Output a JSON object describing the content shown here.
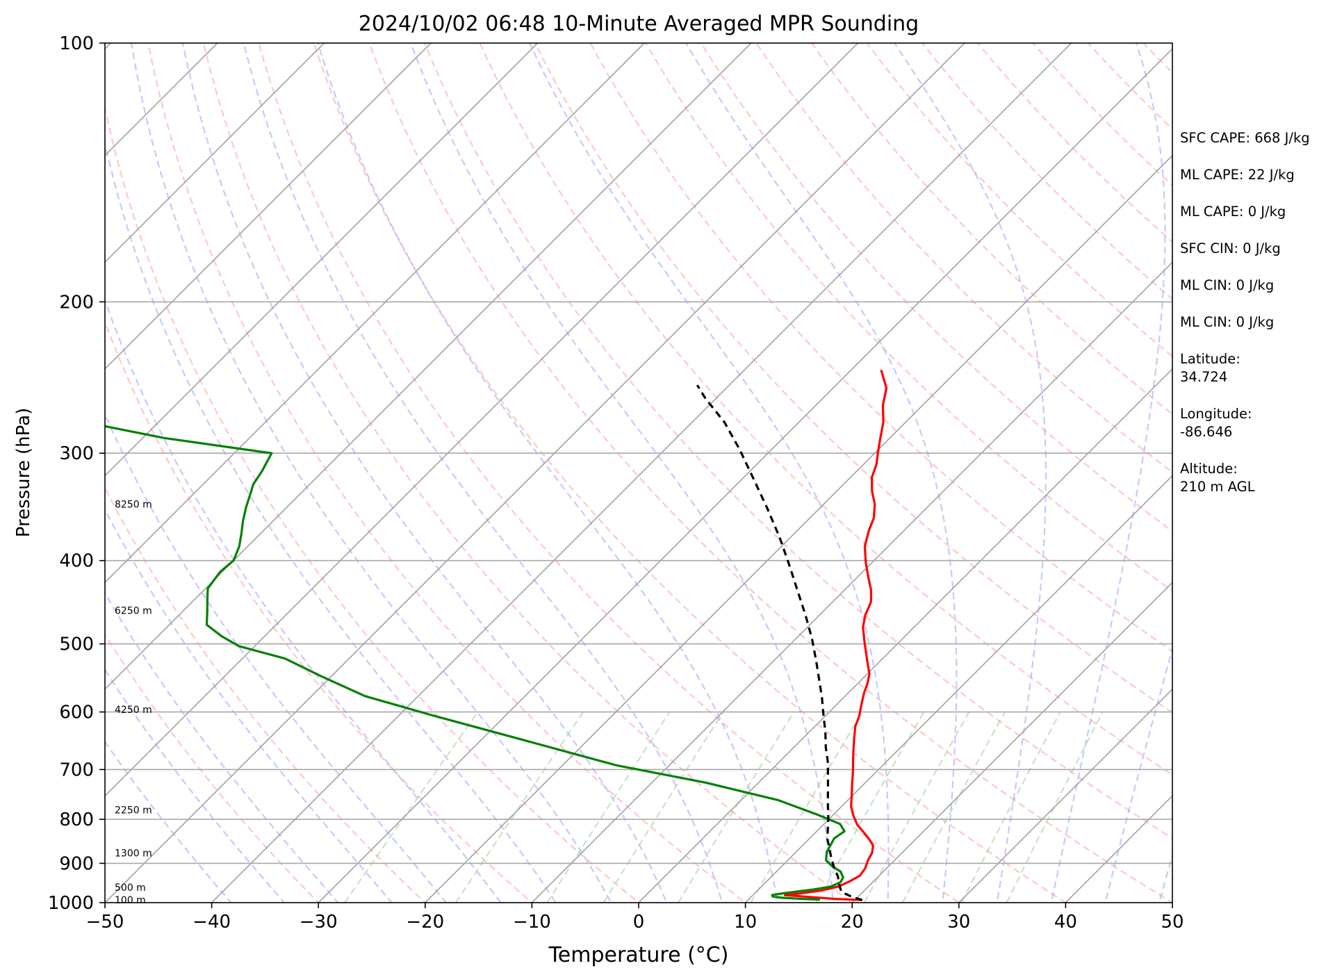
{
  "chart_data": {
    "type": "line",
    "title": "2024/10/02 06:48 10-Minute Averaged MPR Sounding",
    "xlabel": "Temperature (°C)",
    "ylabel": "Pressure (hPa)",
    "xlim": [
      -50,
      50
    ],
    "ylim": [
      1000,
      100
    ],
    "y_scale": "log",
    "skew": "skew-T log-p",
    "x_ticks": [
      "−50",
      "−40",
      "−30",
      "−20",
      "−10",
      "0",
      "10",
      "20",
      "30",
      "40",
      "50"
    ],
    "y_ticks": [
      "100",
      "200",
      "300",
      "400",
      "500",
      "600",
      "700",
      "800",
      "900",
      "1000"
    ],
    "height_labels": [
      {
        "text": "100 m",
        "p": 993
      },
      {
        "text": "500 m",
        "p": 960
      },
      {
        "text": "1300 m",
        "p": 875
      },
      {
        "text": "2250 m",
        "p": 780
      },
      {
        "text": "4250 m",
        "p": 596
      },
      {
        "text": "6250 m",
        "p": 457
      },
      {
        "text": "8250 m",
        "p": 344
      }
    ],
    "series": [
      {
        "role": "temperature",
        "color": "#ff0000",
        "style": "solid",
        "points": [
          [
            20.7,
            993
          ],
          [
            18,
            990
          ],
          [
            15,
            984
          ],
          [
            13,
            980
          ],
          [
            14.2,
            976
          ],
          [
            16,
            968
          ],
          [
            17.2,
            958
          ],
          [
            17.8,
            944
          ],
          [
            18.2,
            930
          ],
          [
            18,
            912
          ],
          [
            17.5,
            892
          ],
          [
            17.2,
            875
          ],
          [
            16.6,
            858
          ],
          [
            15.6,
            843
          ],
          [
            14.4,
            827
          ],
          [
            13.2,
            812
          ],
          [
            11.9,
            791
          ],
          [
            10.9,
            773
          ],
          [
            9.9,
            750
          ],
          [
            8.8,
            726
          ],
          [
            7.8,
            704
          ],
          [
            6.8,
            684
          ],
          [
            5.8,
            664
          ],
          [
            4.8,
            644
          ],
          [
            3.8,
            624
          ],
          [
            3.2,
            607
          ],
          [
            2.3,
            588
          ],
          [
            1.5,
            571
          ],
          [
            0.9,
            556
          ],
          [
            0.2,
            542
          ],
          [
            -0.8,
            529
          ],
          [
            -1.8,
            516
          ],
          [
            -3.3,
            497
          ],
          [
            -4.8,
            478
          ],
          [
            -5.7,
            463
          ],
          [
            -6.4,
            447
          ],
          [
            -7.5,
            433
          ],
          [
            -9,
            418
          ],
          [
            -10.6,
            402
          ],
          [
            -12.2,
            385
          ],
          [
            -13.3,
            369
          ],
          [
            -14,
            357
          ],
          [
            -15.2,
            344
          ],
          [
            -16.7,
            332
          ],
          [
            -18,
            320
          ],
          [
            -18.8,
            309
          ],
          [
            -19.7,
            300
          ],
          [
            -20.7,
            290
          ],
          [
            -22.1,
            276
          ],
          [
            -23.7,
            264
          ],
          [
            -25,
            252
          ],
          [
            -27.2,
            240
          ]
        ]
      },
      {
        "role": "dewpoint",
        "color": "#008000",
        "style": "solid",
        "points": [
          [
            16.7,
            992
          ],
          [
            15,
            990
          ],
          [
            13,
            987
          ],
          [
            12,
            984
          ],
          [
            11.8,
            980
          ],
          [
            12.5,
            976
          ],
          [
            13.5,
            972
          ],
          [
            15,
            966
          ],
          [
            16.5,
            958
          ],
          [
            17,
            947
          ],
          [
            16.8,
            935
          ],
          [
            16,
            920
          ],
          [
            14.8,
            908
          ],
          [
            13.6,
            893
          ],
          [
            12.9,
            874
          ],
          [
            12.6,
            858
          ],
          [
            12.3,
            842
          ],
          [
            12.6,
            826
          ],
          [
            11.5,
            810
          ],
          [
            8.5,
            790
          ],
          [
            3.5,
            760
          ],
          [
            -5,
            725
          ],
          [
            -15,
            692
          ],
          [
            -26,
            647
          ],
          [
            -37,
            605
          ],
          [
            -45,
            575
          ],
          [
            -51,
            545
          ],
          [
            -56,
            520
          ],
          [
            -61.5,
            503
          ],
          [
            -64,
            490
          ],
          [
            -66.5,
            475
          ],
          [
            -67.8,
            457
          ],
          [
            -68.8,
            444
          ],
          [
            -69.8,
            431
          ],
          [
            -70.2,
            412
          ],
          [
            -70,
            400
          ],
          [
            -70.8,
            385
          ],
          [
            -71.8,
            372
          ],
          [
            -72.8,
            360
          ],
          [
            -73.8,
            347
          ],
          [
            -74.5,
            337
          ],
          [
            -75.3,
            326
          ],
          [
            -75.7,
            315
          ],
          [
            -76.5,
            300
          ],
          [
            -88,
            288
          ],
          [
            -97,
            276
          ],
          [
            -102,
            268
          ]
        ]
      },
      {
        "role": "parcel",
        "color": "#000000",
        "style": "dashed",
        "points": [
          [
            20.7,
            993
          ],
          [
            19.5,
            985
          ],
          [
            18,
            972
          ],
          [
            17.2,
            955
          ],
          [
            16.2,
            932
          ],
          [
            15,
            910
          ],
          [
            13.9,
            888
          ],
          [
            12.8,
            865
          ],
          [
            11.7,
            843
          ],
          [
            10.7,
            818
          ],
          [
            9.7,
            794
          ],
          [
            8.4,
            766
          ],
          [
            7.2,
            740
          ],
          [
            5.9,
            713
          ],
          [
            4.6,
            687
          ],
          [
            3,
            660
          ],
          [
            1.5,
            633
          ],
          [
            -0.2,
            606
          ],
          [
            -2,
            578
          ],
          [
            -4,
            550
          ],
          [
            -6.2,
            521
          ],
          [
            -8.5,
            493
          ],
          [
            -11.3,
            463
          ],
          [
            -14.3,
            434
          ],
          [
            -17.5,
            405
          ],
          [
            -21,
            376
          ],
          [
            -25,
            347
          ],
          [
            -29,
            321
          ],
          [
            -33,
            297
          ],
          [
            -37,
            276
          ],
          [
            -41,
            259
          ],
          [
            -43,
            250
          ]
        ]
      }
    ],
    "background_lines": [
      {
        "name": "isotherms",
        "color": "#a0a0a0",
        "style": "solid"
      },
      {
        "name": "dry adiabats",
        "color": "#ff9999",
        "style": "dashed"
      },
      {
        "name": "moist adiabats",
        "color": "#9999ff",
        "style": "dashed"
      },
      {
        "name": "mixing ratio lines",
        "color": "#99cc99",
        "style": "dashed"
      }
    ],
    "annotations": [
      "SFC CAPE: 668 J/kg",
      "ML CAPE: 22 J/kg",
      "ML CAPE: 0 J/kg",
      "SFC CIN: 0 J/kg",
      "ML CIN: 0 J/kg",
      "ML CIN: 0 J/kg",
      "Latitude:\n34.724",
      "Longitude:\n-86.646",
      "Altitude:\n210 m AGL"
    ],
    "grid": true,
    "legend": "none"
  }
}
